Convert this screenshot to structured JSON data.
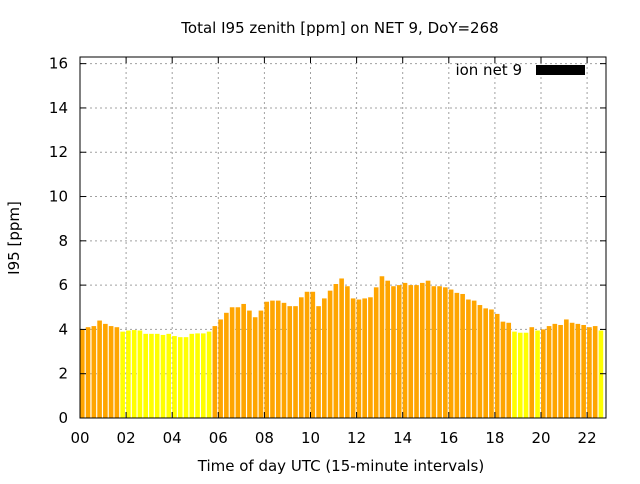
{
  "chart_data": {
    "type": "bar",
    "title": "Total I95 zenith [ppm] on NET 9, DoY=268",
    "xlabel": "Time of day UTC (15-minute intervals)",
    "ylabel": "I95 [ppm]",
    "xlim": [
      0,
      22.82
    ],
    "ylim": [
      0,
      16.3
    ],
    "grid": true,
    "legend": {
      "label": "ion net 9",
      "position": "top-right",
      "color": "#000000"
    },
    "x_ticks": [
      {
        "v": 0,
        "label": "00"
      },
      {
        "v": 2,
        "label": "02"
      },
      {
        "v": 4,
        "label": "04"
      },
      {
        "v": 6,
        "label": "06"
      },
      {
        "v": 8,
        "label": "08"
      },
      {
        "v": 10,
        "label": "10"
      },
      {
        "v": 12,
        "label": "12"
      },
      {
        "v": 14,
        "label": "14"
      },
      {
        "v": 16,
        "label": "16"
      },
      {
        "v": 18,
        "label": "18"
      },
      {
        "v": 20,
        "label": "20"
      },
      {
        "v": 22,
        "label": "22"
      }
    ],
    "y_ticks": [
      {
        "v": 0,
        "label": "0"
      },
      {
        "v": 2,
        "label": "2"
      },
      {
        "v": 4,
        "label": "4"
      },
      {
        "v": 6,
        "label": "6"
      },
      {
        "v": 8,
        "label": "8"
      },
      {
        "v": 10,
        "label": "10"
      },
      {
        "v": 12,
        "label": "12"
      },
      {
        "v": 14,
        "label": "14"
      },
      {
        "v": 16,
        "label": "16"
      }
    ],
    "interval_hours": 0.25,
    "threshold": 4.0,
    "colors": {
      "above": "#ffa500",
      "below": "#ffff00"
    },
    "values": [
      4.0,
      4.1,
      4.15,
      4.4,
      4.25,
      4.15,
      4.1,
      3.9,
      3.95,
      3.97,
      3.95,
      3.8,
      3.8,
      3.8,
      3.75,
      3.8,
      3.7,
      3.65,
      3.65,
      3.8,
      3.82,
      3.82,
      3.9,
      4.15,
      4.45,
      4.75,
      5.0,
      5.0,
      5.15,
      4.85,
      4.55,
      4.85,
      5.25,
      5.3,
      5.3,
      5.2,
      5.05,
      5.05,
      5.45,
      5.7,
      5.7,
      5.05,
      5.4,
      5.75,
      6.05,
      6.3,
      5.95,
      5.4,
      5.35,
      5.4,
      5.45,
      5.9,
      6.4,
      6.2,
      5.95,
      6.0,
      6.1,
      6.0,
      6.0,
      6.1,
      6.2,
      5.95,
      5.95,
      5.9,
      5.8,
      5.65,
      5.6,
      5.35,
      5.3,
      5.1,
      4.95,
      4.9,
      4.7,
      4.35,
      4.3,
      3.9,
      3.85,
      3.85,
      4.1,
      3.95,
      4.0,
      4.15,
      4.25,
      4.2,
      4.45,
      4.3,
      4.25,
      4.2,
      4.1,
      4.15,
      3.95
    ]
  }
}
